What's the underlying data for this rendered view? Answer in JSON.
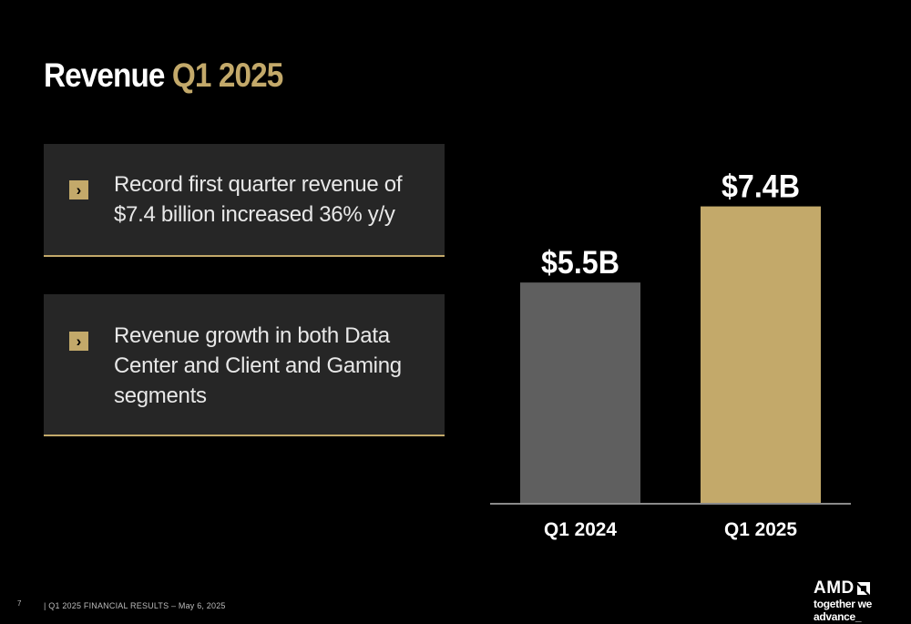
{
  "slide": {
    "title_main": "Revenue",
    "title_accent": "Q1 2025",
    "page_number": "7",
    "footer": "|  Q1 2025 FINANCIAL RESULTS – May 6, 2025"
  },
  "bullets": [
    {
      "icon": "chevron-right-icon",
      "glyph": "›",
      "text": "Record first quarter revenue of $7.4 billion increased 36% y/y"
    },
    {
      "icon": "chevron-right-icon",
      "glyph": "›",
      "text": "Revenue growth in both Data Center and Client and Gaming segments"
    }
  ],
  "logo": {
    "brand": "AMD",
    "tagline": "together we advance_"
  },
  "colors": {
    "accent": "#c3a96a",
    "bar_prior": "#5f5f5f",
    "bar_current": "#c3a96a",
    "card_bg": "#262626"
  },
  "chart_data": {
    "type": "bar",
    "categories": [
      "Q1 2024",
      "Q1 2025"
    ],
    "values": [
      5.5,
      7.4
    ],
    "data_labels": [
      "$5.5B",
      "$7.4B"
    ],
    "unit": "$B",
    "ylim": [
      0,
      8.3
    ],
    "grid": false,
    "bar_colors": [
      "#5f5f5f",
      "#c3a96a"
    ]
  }
}
